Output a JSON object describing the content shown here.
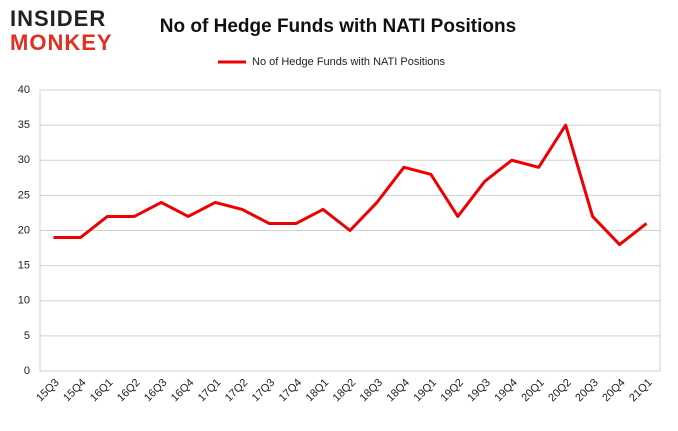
{
  "logo": {
    "line1": "INSIDER",
    "line2": "MONKEY"
  },
  "chart_data": {
    "type": "line",
    "title": "No of Hedge Funds with NATI Positions",
    "categories": [
      "15Q3",
      "15Q4",
      "16Q1",
      "16Q2",
      "16Q3",
      "16Q4",
      "17Q1",
      "17Q2",
      "17Q3",
      "17Q4",
      "18Q1",
      "18Q2",
      "18Q3",
      "18Q4",
      "19Q1",
      "19Q2",
      "19Q3",
      "19Q4",
      "20Q1",
      "20Q2",
      "20Q3",
      "20Q4",
      "21Q1"
    ],
    "series": [
      {
        "name": "No of Hedge Funds with NATI Positions",
        "color": "#ee0000",
        "values": [
          19,
          19,
          22,
          22,
          24,
          22,
          24,
          23,
          21,
          21,
          23,
          20,
          24,
          29,
          28,
          22,
          27,
          30,
          29,
          35,
          22,
          18,
          21
        ]
      }
    ],
    "ylim": [
      0,
      40
    ],
    "yticks": [
      0,
      5,
      10,
      15,
      20,
      25,
      30,
      35,
      40
    ],
    "grid": true,
    "legend": "top"
  }
}
